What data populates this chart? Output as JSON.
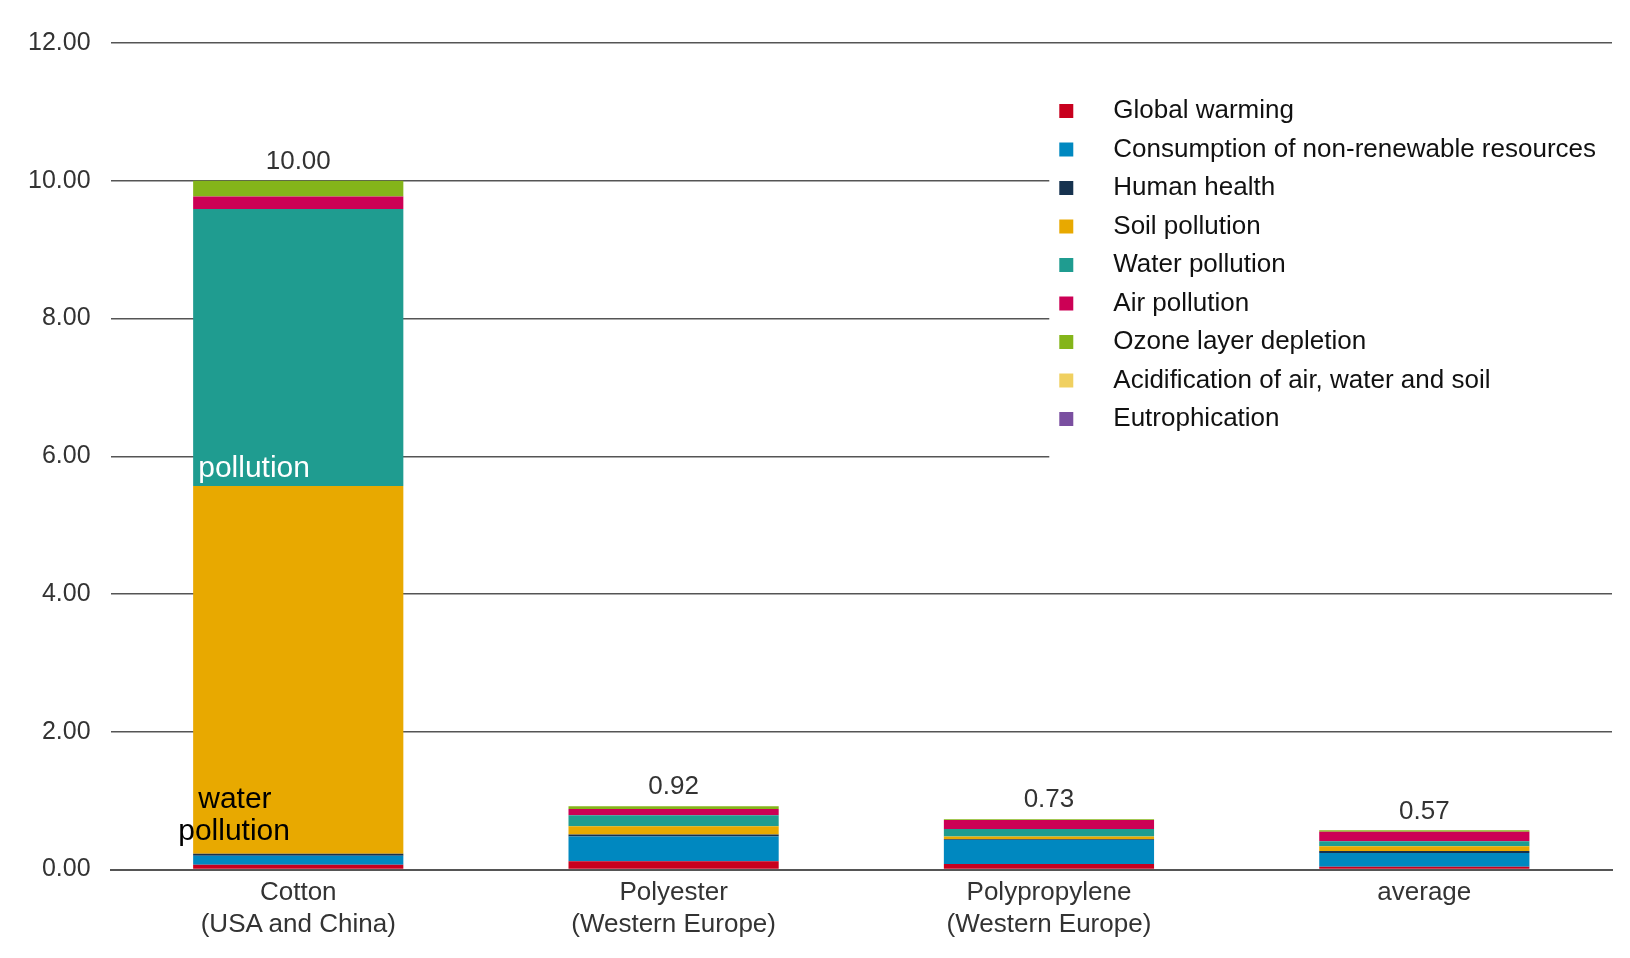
{
  "chart_data": {
    "type": "bar",
    "stacked": true,
    "categories": [
      "Cotton\n(USA and China)",
      "Polyester\n(Western Europe)",
      "Polypropylene\n(Western Europe)",
      "average"
    ],
    "series": [
      {
        "name": "Global warming",
        "color": "#c8001e",
        "values": [
          0.07,
          0.12,
          0.08,
          0.04
        ]
      },
      {
        "name": "Consumption of non-renewable resources",
        "color": "#0088c0",
        "values": [
          0.13,
          0.36,
          0.35,
          0.2
        ]
      },
      {
        "name": "Human health",
        "color": "#16324f",
        "values": [
          0.03,
          0.03,
          0.01,
          0.03
        ]
      },
      {
        "name": "Soil pollution",
        "color": "#e8a900",
        "values": [
          5.34,
          0.12,
          0.04,
          0.07
        ]
      },
      {
        "name": "Water pollution",
        "color": "#1f9c90",
        "values": [
          4.02,
          0.16,
          0.11,
          0.07
        ]
      },
      {
        "name": "Air pollution",
        "color": "#cc0055",
        "values": [
          0.18,
          0.09,
          0.13,
          0.14
        ]
      },
      {
        "name": "Ozone layer depletion",
        "color": "#84b51a",
        "values": [
          0.23,
          0.04,
          0.01,
          0.02
        ]
      },
      {
        "name": "Acidification of air, water and soil",
        "color": "#f0d060",
        "values": [
          null,
          null,
          null,
          null
        ]
      },
      {
        "name": "Eutrophication",
        "color": "#7a4fa0",
        "values": [
          null,
          null,
          null,
          null
        ]
      }
    ],
    "totals": [
      "10.00",
      "0.92",
      "0.73",
      "0.57"
    ],
    "ylim": [
      0,
      12
    ],
    "yticks": [
      {
        "value": 0,
        "label": "0.00"
      },
      {
        "value": 2,
        "label": "2.00"
      },
      {
        "value": 4,
        "label": "4.00"
      },
      {
        "value": 6,
        "label": "6.00"
      },
      {
        "value": 8,
        "label": "8.00"
      },
      {
        "value": 10,
        "label": "10.00"
      },
      {
        "value": 12,
        "label": "12.00"
      }
    ],
    "grid": "y",
    "legend": "top right",
    "annotations": [
      "pollution",
      "water\npollution"
    ]
  }
}
